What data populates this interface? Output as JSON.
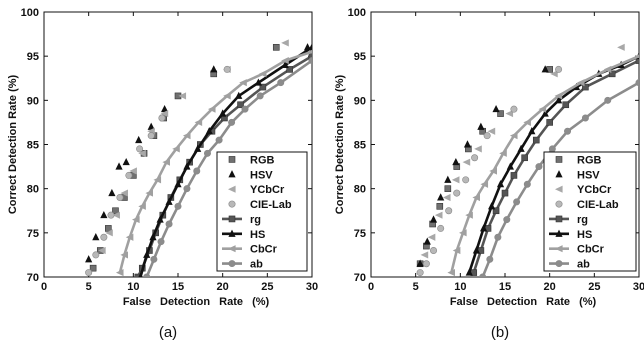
{
  "figure": {
    "panel_labels": [
      "(a)",
      "(b)"
    ]
  },
  "chart_data": [
    {
      "type": "line",
      "panel": "(a)",
      "xlabel": "False Detection Rate (%)",
      "ylabel": "Correct Detection Rate (%)",
      "xlim": [
        0,
        30
      ],
      "ylim": [
        70,
        100
      ],
      "xticks": [
        0,
        5,
        10,
        15,
        20,
        25,
        30
      ],
      "yticks": [
        70,
        75,
        80,
        85,
        90,
        95,
        100
      ],
      "grid": false,
      "legend_position": "bottom-right",
      "series": [
        {
          "name": "RGB",
          "style": "markers",
          "marker": "square",
          "color": "#707070",
          "x": [
            5.5,
            6.3,
            7.2,
            8.0,
            9.0,
            10.0,
            11.2,
            12.3,
            13.4,
            15.0,
            19.0,
            26.0
          ],
          "y": [
            71.0,
            73.0,
            75.5,
            77.5,
            79.0,
            81.5,
            84.0,
            86.0,
            88.0,
            90.5,
            93.0,
            96.0
          ]
        },
        {
          "name": "HSV",
          "style": "markers",
          "marker": "triangle",
          "color": "#111111",
          "x": [
            5.0,
            5.8,
            6.7,
            7.6,
            8.4,
            9.2,
            10.6,
            12.0,
            13.5,
            19.0,
            29.5
          ],
          "y": [
            72.0,
            74.5,
            77.0,
            79.5,
            82.5,
            83.0,
            85.5,
            87.0,
            89.0,
            93.5,
            96.0
          ]
        },
        {
          "name": "YCbCr",
          "style": "markers",
          "marker": "triangle-left",
          "color": "#a8a8a8",
          "x": [
            6.5,
            7.3,
            8.1,
            9.0,
            10.0,
            11.0,
            12.0,
            13.5,
            15.5,
            20.5,
            27.0
          ],
          "y": [
            73.0,
            75.0,
            77.0,
            79.5,
            82.0,
            84.0,
            86.5,
            88.5,
            90.5,
            93.5,
            96.5
          ]
        },
        {
          "name": "CIE-Lab",
          "style": "markers",
          "marker": "circle",
          "color": "#b8b8b8",
          "x": [
            5.0,
            5.8,
            6.7,
            7.5,
            8.5,
            9.5,
            10.7,
            12.0,
            13.2,
            20.5
          ],
          "y": [
            70.5,
            72.5,
            74.5,
            77.0,
            79.0,
            81.5,
            84.5,
            86.0,
            88.0,
            93.5
          ]
        },
        {
          "name": "rg",
          "style": "line-markers",
          "marker": "square",
          "color": "#555555",
          "x": [
            10.5,
            11.0,
            11.8,
            12.5,
            13.3,
            14.2,
            15.2,
            16.3,
            17.5,
            18.8,
            20.2,
            22.0,
            24.5,
            27.5,
            30.0
          ],
          "y": [
            70.0,
            71.0,
            73.0,
            75.0,
            77.0,
            79.0,
            81.0,
            83.0,
            85.0,
            86.5,
            88.0,
            89.5,
            91.5,
            93.5,
            95.0
          ]
        },
        {
          "name": "HS",
          "style": "line-markers",
          "marker": "triangle",
          "color": "#111111",
          "x": [
            10.8,
            11.5,
            12.2,
            13.0,
            14.0,
            15.0,
            16.0,
            17.2,
            18.5,
            20.0,
            21.8,
            24.0,
            27.0,
            30.0
          ],
          "y": [
            70.0,
            72.5,
            74.5,
            76.5,
            78.5,
            80.5,
            82.5,
            84.5,
            86.5,
            88.5,
            90.5,
            92.0,
            94.0,
            96.0
          ]
        },
        {
          "name": "CbCr",
          "style": "line-markers",
          "marker": "triangle-left",
          "color": "#a0a0a0",
          "x": [
            8.5,
            9.0,
            9.6,
            10.3,
            11.0,
            11.8,
            12.7,
            13.7,
            14.8,
            16.0,
            17.3,
            18.8,
            20.5,
            22.3,
            24.5,
            27.0,
            30.0
          ],
          "y": [
            70.5,
            72.5,
            74.5,
            76.5,
            78.0,
            79.5,
            81.0,
            83.0,
            84.5,
            86.0,
            87.5,
            89.0,
            90.5,
            92.0,
            93.0,
            94.5,
            95.5
          ]
        },
        {
          "name": "ab",
          "style": "line-markers",
          "marker": "circle",
          "color": "#8c8c8c",
          "x": [
            11.5,
            12.3,
            13.1,
            14.0,
            15.0,
            16.0,
            17.1,
            18.3,
            19.6,
            21.0,
            22.5,
            24.2,
            26.5,
            30.0
          ],
          "y": [
            70.0,
            72.0,
            74.0,
            76.0,
            78.0,
            80.0,
            82.0,
            84.0,
            85.5,
            87.5,
            89.0,
            90.5,
            92.0,
            94.5
          ]
        }
      ]
    },
    {
      "type": "line",
      "panel": "(b)",
      "xlabel": "False Detection Rate (%)",
      "ylabel": "Correct Detection Rate (%)",
      "xlim": [
        0,
        30
      ],
      "ylim": [
        70,
        100
      ],
      "xticks": [
        0,
        5,
        10,
        15,
        20,
        25,
        30
      ],
      "yticks": [
        70,
        75,
        80,
        85,
        90,
        95,
        100
      ],
      "grid": false,
      "legend_position": "bottom-right",
      "series": [
        {
          "name": "RGB",
          "style": "markers",
          "marker": "square",
          "color": "#707070",
          "x": [
            5.5,
            6.2,
            6.9,
            7.7,
            8.6,
            9.6,
            10.9,
            12.5,
            14.5,
            20.0
          ],
          "y": [
            71.5,
            73.5,
            76.0,
            78.0,
            80.0,
            82.5,
            84.5,
            86.5,
            88.5,
            93.5
          ]
        },
        {
          "name": "HSV",
          "style": "markers",
          "marker": "triangle",
          "color": "#111111",
          "x": [
            5.5,
            6.3,
            7.0,
            7.8,
            8.6,
            9.5,
            10.8,
            12.3,
            14.0,
            19.5
          ],
          "y": [
            71.5,
            74.0,
            76.5,
            79.0,
            81.0,
            83.0,
            85.0,
            87.0,
            89.0,
            93.5
          ]
        },
        {
          "name": "YCbCr",
          "style": "markers",
          "marker": "triangle-left",
          "color": "#a8a8a8",
          "x": [
            6.0,
            6.8,
            7.6,
            8.5,
            9.5,
            10.7,
            12.0,
            13.5,
            15.5,
            20.5,
            28.0
          ],
          "y": [
            72.5,
            74.5,
            77.0,
            79.0,
            81.0,
            83.0,
            84.5,
            86.5,
            88.5,
            93.0,
            96.0
          ]
        },
        {
          "name": "CIE-Lab",
          "style": "markers",
          "marker": "circle",
          "color": "#b8b8b8",
          "x": [
            5.5,
            6.2,
            7.0,
            7.8,
            8.7,
            9.6,
            10.6,
            11.6,
            13.0,
            16.0,
            21.0
          ],
          "y": [
            70.5,
            71.5,
            73.0,
            75.5,
            77.5,
            79.5,
            81.0,
            83.5,
            86.0,
            89.0,
            93.5
          ]
        },
        {
          "name": "rg",
          "style": "line-markers",
          "marker": "square",
          "color": "#555555",
          "x": [
            11.5,
            12.3,
            13.1,
            14.0,
            15.0,
            16.0,
            17.2,
            18.5,
            20.0,
            21.8,
            24.0,
            27.0,
            30.0
          ],
          "y": [
            70.5,
            73.0,
            75.5,
            77.5,
            79.5,
            81.5,
            83.5,
            85.5,
            87.5,
            89.5,
            91.5,
            93.0,
            94.5
          ]
        },
        {
          "name": "HS",
          "style": "line-markers",
          "marker": "triangle",
          "color": "#111111",
          "x": [
            11.0,
            11.8,
            12.6,
            13.5,
            14.5,
            15.6,
            16.8,
            18.0,
            19.5,
            21.0,
            23.0,
            25.5,
            28.0,
            30.0
          ],
          "y": [
            70.5,
            73.0,
            75.5,
            78.0,
            80.5,
            82.5,
            84.5,
            86.5,
            88.5,
            90.0,
            91.5,
            93.0,
            94.0,
            95.0
          ]
        },
        {
          "name": "CbCr",
          "style": "line-markers",
          "marker": "triangle-left",
          "color": "#a0a0a0",
          "x": [
            9.0,
            9.6,
            10.3,
            11.0,
            11.8,
            12.7,
            13.7,
            14.8,
            16.0,
            17.5,
            19.2,
            21.0,
            23.5,
            26.5,
            30.0
          ],
          "y": [
            70.5,
            73.0,
            75.0,
            77.0,
            79.0,
            80.5,
            82.0,
            84.0,
            86.0,
            87.5,
            89.0,
            90.5,
            92.0,
            93.5,
            95.0
          ]
        },
        {
          "name": "ab",
          "style": "line-markers",
          "marker": "circle",
          "color": "#8c8c8c",
          "x": [
            12.5,
            13.3,
            14.2,
            15.2,
            16.3,
            17.5,
            18.8,
            20.3,
            22.0,
            24.0,
            26.5,
            30.0
          ],
          "y": [
            70.0,
            72.0,
            74.5,
            76.5,
            78.5,
            80.5,
            82.5,
            84.5,
            86.5,
            88.0,
            90.0,
            92.0
          ]
        }
      ]
    }
  ]
}
